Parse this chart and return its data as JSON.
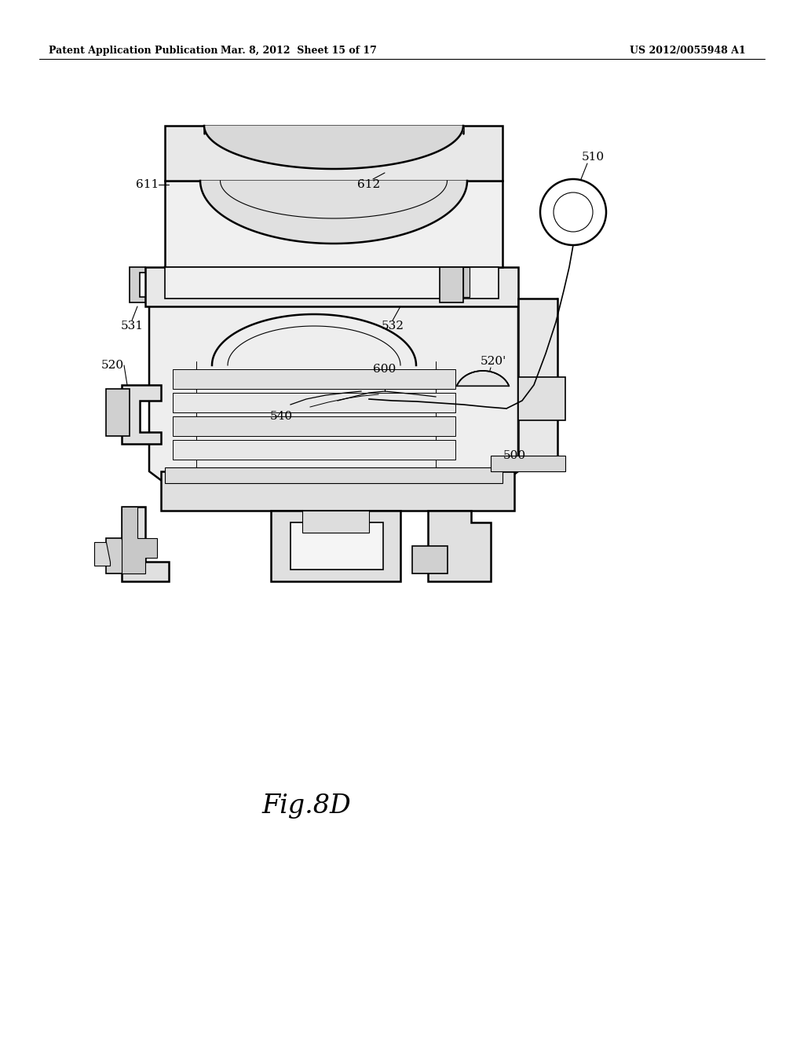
{
  "header_left": "Patent Application Publication",
  "header_mid": "Mar. 8, 2012  Sheet 15 of 17",
  "header_right": "US 2012/0055948 A1",
  "figure_label": "Fig.8D",
  "background_color": "#ffffff",
  "line_color": "#000000"
}
